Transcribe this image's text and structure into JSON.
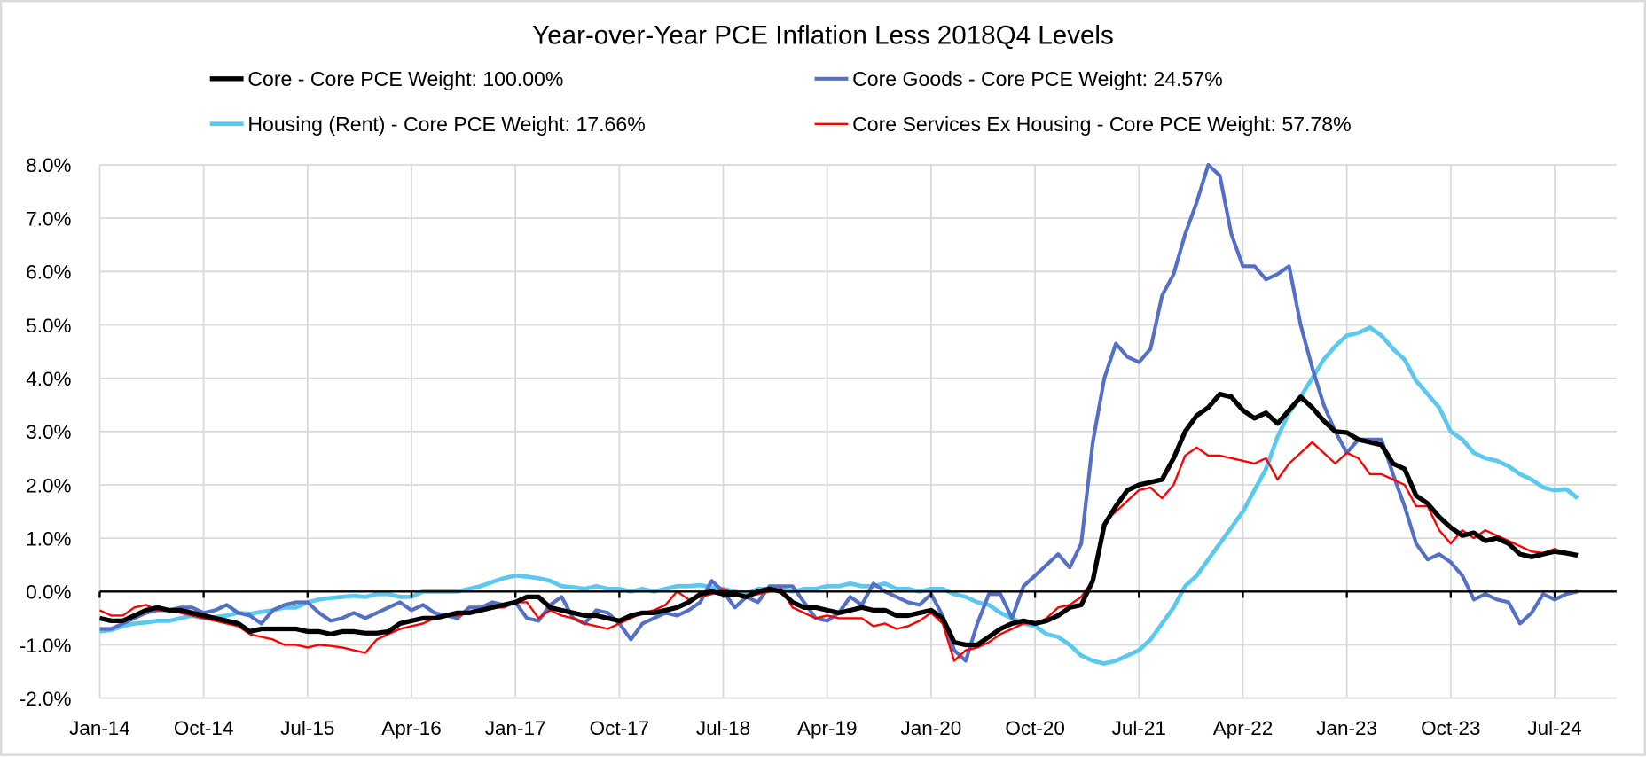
{
  "chart_data": {
    "type": "line",
    "title": "Year-over-Year PCE Inflation Less 2018Q4 Levels",
    "xlabel": "",
    "ylabel": "",
    "ylim": [
      -2.0,
      8.0
    ],
    "ytick_step": 1.0,
    "yticks": [
      "8.0%",
      "7.0%",
      "6.0%",
      "5.0%",
      "4.0%",
      "3.0%",
      "2.0%",
      "1.0%",
      "0.0%",
      "-1.0%",
      "-2.0%"
    ],
    "xticks": [
      "Jan-14",
      "Oct-14",
      "Jul-15",
      "Apr-16",
      "Jan-17",
      "Oct-17",
      "Jul-18",
      "Apr-19",
      "Jan-20",
      "Oct-20",
      "Jul-21",
      "Apr-22",
      "Jan-23",
      "Oct-23",
      "Jul-24"
    ],
    "x_start": "Jan-14",
    "x_frequency": "monthly",
    "grid": true,
    "legend_placement": "top",
    "series": [
      {
        "name": "Core - Core PCE Weight: 100.00%",
        "color": "#000000",
        "values": [
          -0.5,
          -0.55,
          -0.55,
          -0.45,
          -0.35,
          -0.3,
          -0.35,
          -0.35,
          -0.4,
          -0.45,
          -0.5,
          -0.55,
          -0.6,
          -0.75,
          -0.7,
          -0.7,
          -0.7,
          -0.7,
          -0.75,
          -0.75,
          -0.8,
          -0.75,
          -0.75,
          -0.78,
          -0.78,
          -0.75,
          -0.6,
          -0.55,
          -0.5,
          -0.5,
          -0.45,
          -0.4,
          -0.4,
          -0.35,
          -0.3,
          -0.25,
          -0.2,
          -0.1,
          -0.1,
          -0.3,
          -0.35,
          -0.4,
          -0.45,
          -0.45,
          -0.5,
          -0.55,
          -0.45,
          -0.4,
          -0.4,
          -0.35,
          -0.3,
          -0.2,
          -0.05,
          0.0,
          -0.05,
          -0.05,
          -0.1,
          0.0,
          0.05,
          0.0,
          -0.2,
          -0.3,
          -0.3,
          -0.35,
          -0.4,
          -0.35,
          -0.3,
          -0.35,
          -0.35,
          -0.45,
          -0.45,
          -0.4,
          -0.35,
          -0.5,
          -0.95,
          -1.0,
          -1.0,
          -0.85,
          -0.7,
          -0.6,
          -0.55,
          -0.6,
          -0.55,
          -0.45,
          -0.3,
          -0.25,
          0.2,
          1.25,
          1.6,
          1.9,
          2.0,
          2.05,
          2.1,
          2.5,
          3.0,
          3.3,
          3.45,
          3.7,
          3.65,
          3.4,
          3.25,
          3.35,
          3.15,
          3.4,
          3.65,
          3.45,
          3.2,
          3.0,
          2.98,
          2.85,
          2.8,
          2.75,
          2.4,
          2.3,
          1.8,
          1.65,
          1.4,
          1.2,
          1.05,
          1.1,
          0.95,
          1.0,
          0.9,
          0.7,
          0.65,
          0.7,
          0.75,
          0.72,
          0.68
        ]
      },
      {
        "name": "Core Goods - Core PCE Weight: 24.57%",
        "color": "#5470C6",
        "values": [
          -0.7,
          -0.7,
          -0.6,
          -0.5,
          -0.4,
          -0.35,
          -0.35,
          -0.3,
          -0.3,
          -0.4,
          -0.35,
          -0.25,
          -0.4,
          -0.45,
          -0.6,
          -0.35,
          -0.25,
          -0.2,
          -0.2,
          -0.4,
          -0.55,
          -0.5,
          -0.4,
          -0.5,
          -0.4,
          -0.3,
          -0.2,
          -0.35,
          -0.25,
          -0.4,
          -0.45,
          -0.5,
          -0.3,
          -0.3,
          -0.2,
          -0.25,
          -0.2,
          -0.5,
          -0.55,
          -0.25,
          -0.1,
          -0.5,
          -0.6,
          -0.35,
          -0.4,
          -0.6,
          -0.9,
          -0.6,
          -0.5,
          -0.4,
          -0.45,
          -0.35,
          -0.2,
          0.2,
          0.0,
          -0.3,
          -0.1,
          -0.2,
          0.1,
          0.1,
          0.1,
          -0.2,
          -0.5,
          -0.55,
          -0.4,
          -0.1,
          -0.25,
          0.15,
          0.0,
          -0.1,
          -0.2,
          -0.25,
          -0.05,
          -0.45,
          -1.1,
          -1.3,
          -0.6,
          -0.05,
          -0.05,
          -0.5,
          0.1,
          0.3,
          0.5,
          0.7,
          0.45,
          0.9,
          2.8,
          4.0,
          4.65,
          4.4,
          4.3,
          4.55,
          5.55,
          5.95,
          6.7,
          7.3,
          8.0,
          7.8,
          6.7,
          6.1,
          6.1,
          5.85,
          5.95,
          6.1,
          5.0,
          4.2,
          3.5,
          3.0,
          2.6,
          2.85,
          2.85,
          2.85,
          2.2,
          1.6,
          0.9,
          0.6,
          0.7,
          0.55,
          0.3,
          -0.15,
          -0.05,
          -0.15,
          -0.2,
          -0.6,
          -0.4,
          -0.05,
          -0.15,
          -0.05,
          0.0
        ]
      },
      {
        "name": "Housing (Rent) - Core PCE Weight: 17.66%",
        "color": "#5BC8F0",
        "values": [
          -0.75,
          -0.72,
          -0.65,
          -0.6,
          -0.58,
          -0.55,
          -0.55,
          -0.5,
          -0.45,
          -0.5,
          -0.48,
          -0.45,
          -0.4,
          -0.42,
          -0.38,
          -0.35,
          -0.3,
          -0.3,
          -0.2,
          -0.15,
          -0.12,
          -0.1,
          -0.08,
          -0.1,
          -0.05,
          -0.05,
          -0.1,
          -0.1,
          0.0,
          0.0,
          0.0,
          0.0,
          0.05,
          0.1,
          0.18,
          0.25,
          0.3,
          0.28,
          0.25,
          0.2,
          0.1,
          0.08,
          0.05,
          0.1,
          0.05,
          0.05,
          0.0,
          0.05,
          0.0,
          0.05,
          0.1,
          0.1,
          0.12,
          0.08,
          0.05,
          0.0,
          -0.05,
          0.05,
          0.05,
          0.05,
          0.0,
          0.05,
          0.05,
          0.1,
          0.1,
          0.15,
          0.1,
          0.1,
          0.15,
          0.05,
          0.05,
          0.0,
          0.05,
          0.05,
          -0.05,
          -0.1,
          -0.2,
          -0.25,
          -0.4,
          -0.5,
          -0.6,
          -0.65,
          -0.8,
          -0.85,
          -1.0,
          -1.2,
          -1.3,
          -1.35,
          -1.3,
          -1.2,
          -1.1,
          -0.9,
          -0.6,
          -0.3,
          0.1,
          0.3,
          0.6,
          0.9,
          1.2,
          1.5,
          1.9,
          2.3,
          2.9,
          3.35,
          3.65,
          4.0,
          4.35,
          4.6,
          4.8,
          4.85,
          4.95,
          4.8,
          4.55,
          4.35,
          3.95,
          3.7,
          3.45,
          3.0,
          2.85,
          2.6,
          2.5,
          2.45,
          2.35,
          2.2,
          2.1,
          1.95,
          1.9,
          1.92,
          1.75
        ]
      },
      {
        "name": "Core Services Ex Housing - Core PCE Weight: 57.78%",
        "color": "#FF0000",
        "values": [
          -0.35,
          -0.45,
          -0.45,
          -0.3,
          -0.25,
          -0.35,
          -0.35,
          -0.4,
          -0.45,
          -0.5,
          -0.55,
          -0.6,
          -0.65,
          -0.8,
          -0.85,
          -0.9,
          -1.0,
          -1.0,
          -1.05,
          -1.0,
          -1.02,
          -1.05,
          -1.1,
          -1.15,
          -0.9,
          -0.8,
          -0.7,
          -0.65,
          -0.6,
          -0.5,
          -0.45,
          -0.45,
          -0.4,
          -0.35,
          -0.3,
          -0.3,
          -0.2,
          -0.2,
          -0.5,
          -0.35,
          -0.45,
          -0.5,
          -0.6,
          -0.65,
          -0.7,
          -0.6,
          -0.5,
          -0.4,
          -0.35,
          -0.25,
          0.0,
          -0.15,
          -0.1,
          -0.05,
          0.05,
          -0.05,
          -0.1,
          -0.05,
          0.0,
          0.05,
          -0.3,
          -0.4,
          -0.5,
          -0.45,
          -0.5,
          -0.5,
          -0.5,
          -0.65,
          -0.6,
          -0.7,
          -0.65,
          -0.55,
          -0.4,
          -0.6,
          -1.3,
          -1.1,
          -1.05,
          -0.95,
          -0.8,
          -0.7,
          -0.6,
          -0.6,
          -0.5,
          -0.3,
          -0.25,
          -0.1,
          0.2,
          1.3,
          1.5,
          1.7,
          1.9,
          1.95,
          1.75,
          2.0,
          2.55,
          2.7,
          2.55,
          2.55,
          2.5,
          2.45,
          2.4,
          2.5,
          2.1,
          2.4,
          2.6,
          2.8,
          2.6,
          2.4,
          2.6,
          2.5,
          2.2,
          2.2,
          2.1,
          2.0,
          1.6,
          1.6,
          1.15,
          0.9,
          1.15,
          1.0,
          1.15,
          1.05,
          0.95,
          0.85,
          0.75,
          0.72,
          0.8,
          0.72,
          0.68
        ]
      }
    ]
  }
}
